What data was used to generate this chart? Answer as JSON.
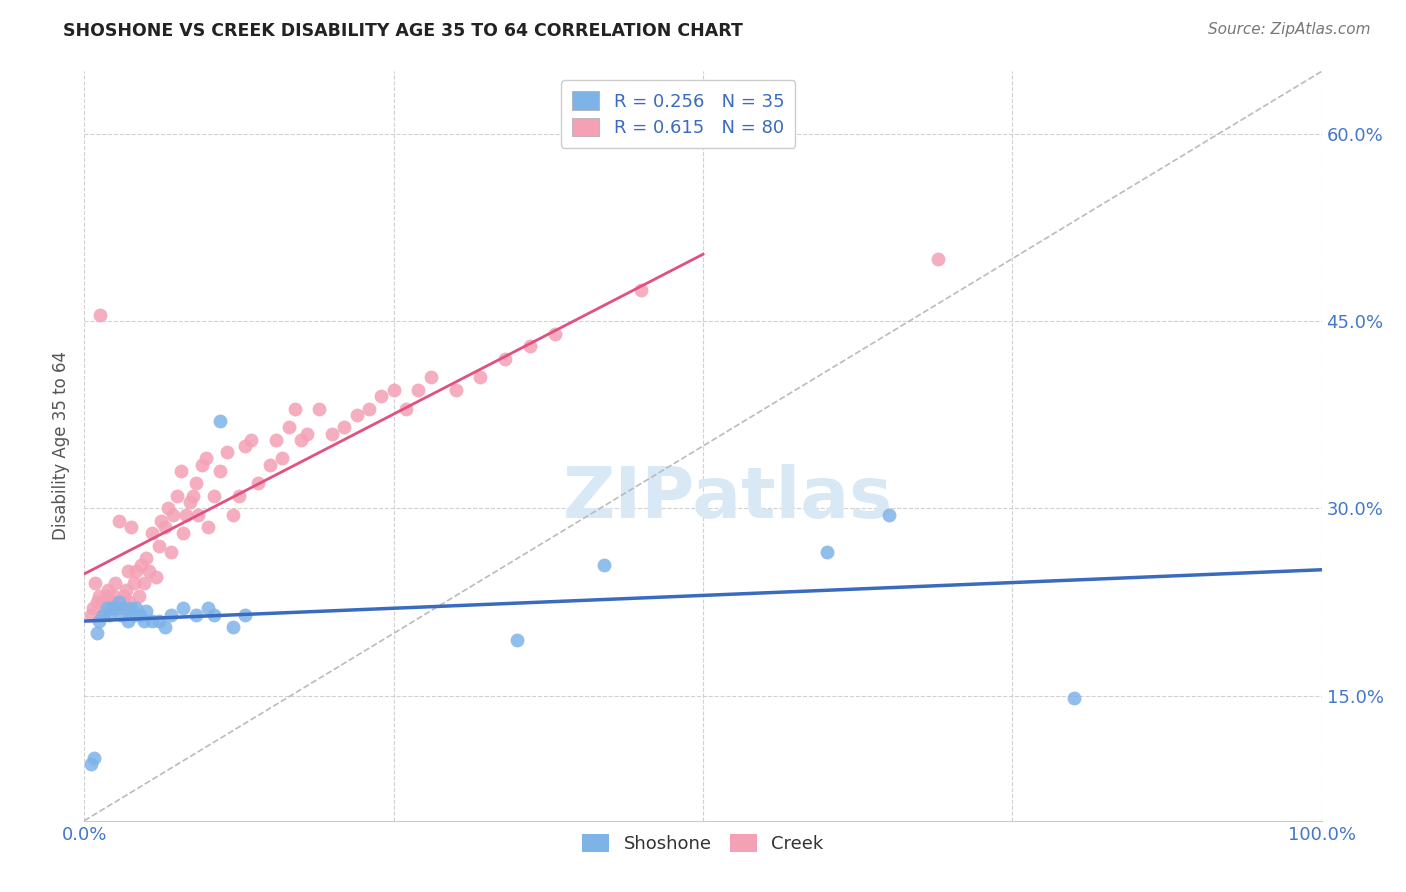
{
  "title": "SHOSHONE VS CREEK DISABILITY AGE 35 TO 64 CORRELATION CHART",
  "ylabel": "Disability Age 35 to 64",
  "source_text": "Source: ZipAtlas.com",
  "xlim": [
    0,
    1.0
  ],
  "ylim": [
    0.05,
    0.65
  ],
  "ytick_values": [
    0.15,
    0.3,
    0.45,
    0.6
  ],
  "ytick_labels": [
    "15.0%",
    "30.0%",
    "45.0%",
    "60.0%"
  ],
  "xtick_values": [
    0.0,
    0.25,
    0.5,
    0.75,
    1.0
  ],
  "xtick_labels": [
    "0.0%",
    "",
    "",
    "",
    "100.0%"
  ],
  "shoshone_color": "#7eb3e8",
  "creek_color": "#f4a0b5",
  "shoshone_line_color": "#3a6bbf",
  "creek_line_color": "#e05080",
  "diagonal_color": "#bbbbbb",
  "R_shoshone": 0.256,
  "N_shoshone": 35,
  "R_creek": 0.615,
  "N_creek": 80,
  "shoshone_x": [
    0.005,
    0.008,
    0.01,
    0.012,
    0.015,
    0.018,
    0.02,
    0.022,
    0.025,
    0.028,
    0.03,
    0.032,
    0.035,
    0.038,
    0.04,
    0.042,
    0.045,
    0.048,
    0.05,
    0.055,
    0.06,
    0.065,
    0.07,
    0.08,
    0.09,
    0.1,
    0.105,
    0.11,
    0.12,
    0.13,
    0.35,
    0.42,
    0.6,
    0.65,
    0.8
  ],
  "shoshone_y": [
    0.095,
    0.1,
    0.2,
    0.21,
    0.215,
    0.22,
    0.215,
    0.22,
    0.22,
    0.225,
    0.215,
    0.22,
    0.21,
    0.22,
    0.215,
    0.22,
    0.215,
    0.21,
    0.218,
    0.21,
    0.21,
    0.205,
    0.215,
    0.22,
    0.215,
    0.22,
    0.215,
    0.37,
    0.205,
    0.215,
    0.195,
    0.255,
    0.265,
    0.295,
    0.148
  ],
  "creek_x": [
    0.005,
    0.007,
    0.009,
    0.01,
    0.012,
    0.013,
    0.015,
    0.016,
    0.018,
    0.019,
    0.02,
    0.022,
    0.024,
    0.025,
    0.026,
    0.028,
    0.03,
    0.032,
    0.034,
    0.035,
    0.036,
    0.038,
    0.04,
    0.042,
    0.044,
    0.046,
    0.048,
    0.05,
    0.052,
    0.055,
    0.058,
    0.06,
    0.062,
    0.065,
    0.068,
    0.07,
    0.072,
    0.075,
    0.078,
    0.08,
    0.082,
    0.085,
    0.088,
    0.09,
    0.092,
    0.095,
    0.098,
    0.1,
    0.105,
    0.11,
    0.115,
    0.12,
    0.125,
    0.13,
    0.135,
    0.14,
    0.15,
    0.155,
    0.16,
    0.165,
    0.17,
    0.175,
    0.18,
    0.19,
    0.2,
    0.21,
    0.22,
    0.23,
    0.24,
    0.25,
    0.26,
    0.27,
    0.28,
    0.3,
    0.32,
    0.34,
    0.36,
    0.38,
    0.45,
    0.69
  ],
  "creek_y": [
    0.215,
    0.22,
    0.24,
    0.225,
    0.23,
    0.455,
    0.215,
    0.225,
    0.23,
    0.235,
    0.22,
    0.225,
    0.23,
    0.24,
    0.22,
    0.29,
    0.225,
    0.23,
    0.235,
    0.25,
    0.225,
    0.285,
    0.24,
    0.25,
    0.23,
    0.255,
    0.24,
    0.26,
    0.25,
    0.28,
    0.245,
    0.27,
    0.29,
    0.285,
    0.3,
    0.265,
    0.295,
    0.31,
    0.33,
    0.28,
    0.295,
    0.305,
    0.31,
    0.32,
    0.295,
    0.335,
    0.34,
    0.285,
    0.31,
    0.33,
    0.345,
    0.295,
    0.31,
    0.35,
    0.355,
    0.32,
    0.335,
    0.355,
    0.34,
    0.365,
    0.38,
    0.355,
    0.36,
    0.38,
    0.36,
    0.365,
    0.375,
    0.38,
    0.39,
    0.395,
    0.38,
    0.395,
    0.405,
    0.395,
    0.405,
    0.42,
    0.43,
    0.44,
    0.475,
    0.5
  ],
  "background_color": "#ffffff",
  "grid_color": "#cccccc",
  "watermark_color": "#d8e8f5"
}
